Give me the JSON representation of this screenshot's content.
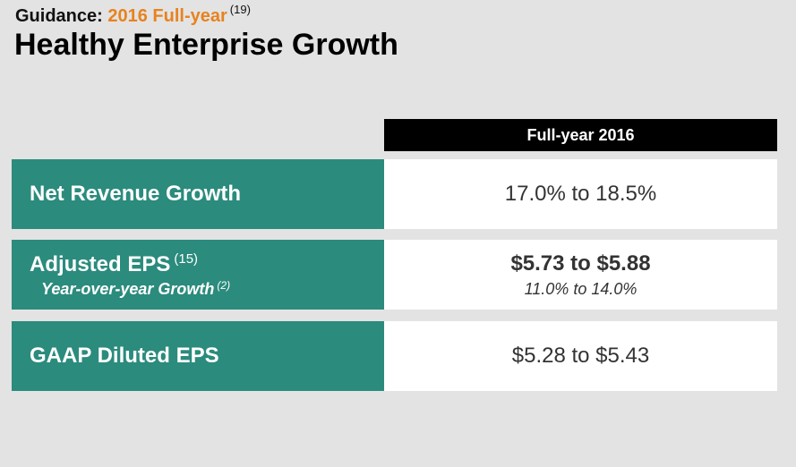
{
  "header": {
    "kicker_label": "Guidance:",
    "kicker_accent": "2016 Full-year",
    "kicker_note": "(19)",
    "title": "Healthy Enterprise Growth"
  },
  "table": {
    "column_header": "Full-year 2016",
    "rows": [
      {
        "label": "Net Revenue Growth",
        "value": "17.0% to 18.5%"
      },
      {
        "label": "Adjusted EPS",
        "label_note": "(15)",
        "sublabel": "Year-over-year Growth",
        "sublabel_note": "(2)",
        "value": "$5.73 to $5.88",
        "subvalue": "11.0% to 14.0%"
      },
      {
        "label": "GAAP Diluted EPS",
        "value": "$5.28 to $5.43"
      }
    ]
  },
  "colors": {
    "accent": "#e8821e",
    "label_fill": "#2b8b7d",
    "header_fill": "#000000",
    "background": "#e3e3e3"
  }
}
